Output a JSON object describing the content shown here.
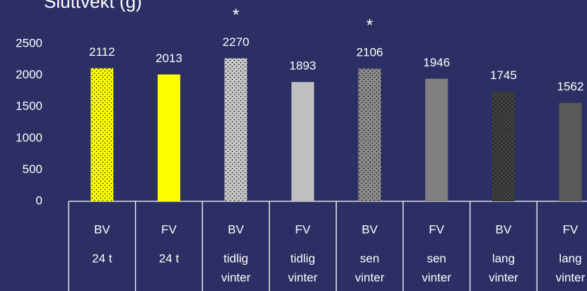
{
  "chart_data": {
    "type": "bar",
    "title": "Sluttvekt (g)",
    "categories": [
      [
        "BV",
        "24 t"
      ],
      [
        "FV",
        "24 t"
      ],
      [
        "BV",
        "tidlig",
        "vinter"
      ],
      [
        "FV",
        "tidlig",
        "vinter"
      ],
      [
        "BV",
        "sen",
        "vinter"
      ],
      [
        "FV",
        "sen",
        "vinter"
      ],
      [
        "BV",
        "lang",
        "vinter"
      ],
      [
        "FV",
        "lang",
        "vinter"
      ]
    ],
    "values": [
      2112,
      2013,
      2270,
      1893,
      2106,
      1946,
      1745,
      1562
    ],
    "colors": [
      "#ffff00",
      "#ffff00",
      "#c8c8c8",
      "#bfbfbf",
      "#8c8c8c",
      "#7f7f7f",
      "#404040",
      "#595959"
    ],
    "patterns": [
      "dots",
      "solid",
      "dots",
      "solid",
      "dots",
      "solid",
      "dots",
      "solid"
    ],
    "markers": [
      null,
      null,
      "*",
      null,
      "*",
      null,
      null,
      null
    ],
    "ylim": [
      0,
      2500
    ],
    "yticks": [
      0,
      500,
      1000,
      1500,
      2000,
      2500
    ],
    "grid": false
  }
}
